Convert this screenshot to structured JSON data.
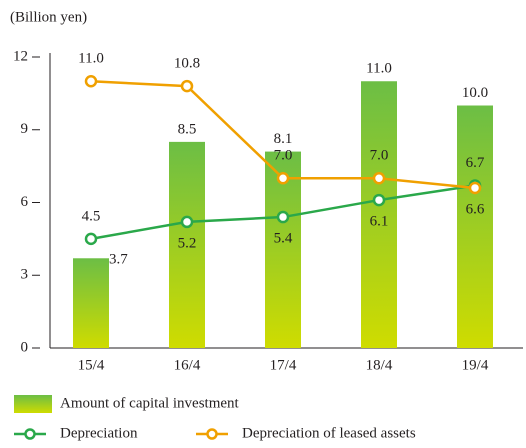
{
  "chart_data": {
    "type": "bar_line",
    "y_label": "(Billion yen)",
    "categories": [
      "15/4",
      "16/4",
      "17/4",
      "18/4",
      "19/4"
    ],
    "series": [
      {
        "name": "Amount of capital investment",
        "type": "bar",
        "color": "#8cc63f",
        "values": [
          3.7,
          8.5,
          8.1,
          11.0,
          10.0
        ],
        "value_labels": [
          "3.7",
          "8.5",
          "8.1",
          "11.0",
          "10.0"
        ]
      },
      {
        "name": "Depreciation",
        "type": "line",
        "color": "#2aa84a",
        "values": [
          4.5,
          5.2,
          5.4,
          6.1,
          6.7
        ],
        "value_labels": [
          "4.5",
          "5.2",
          "5.4",
          "6.1",
          "6.7"
        ]
      },
      {
        "name": "Depreciation of leased assets",
        "type": "line",
        "color": "#f0a000",
        "values": [
          11.0,
          10.8,
          7.0,
          7.0,
          6.6
        ],
        "value_labels": [
          "11.0",
          "10.8",
          "7.0",
          "7.0",
          "6.6"
        ]
      }
    ],
    "ylim": [
      0,
      12
    ],
    "yticks": [
      0,
      3,
      6,
      9,
      12
    ]
  }
}
